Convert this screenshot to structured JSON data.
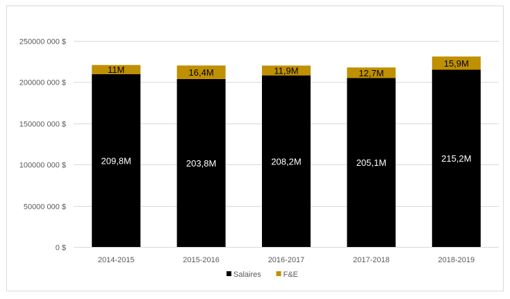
{
  "chart_data": {
    "type": "bar",
    "stacked": true,
    "title": "",
    "xlabel": "",
    "ylabel": "",
    "categories": [
      "2014-2015",
      "2015-2016",
      "2016-2017",
      "2017-2018",
      "2018-2019"
    ],
    "series": [
      {
        "name": "Salaires",
        "color": "#000000",
        "values": [
          209800000,
          203800000,
          208200000,
          205100000,
          215200000
        ],
        "data_labels": [
          "209,8M",
          "203,8M",
          "208,2M",
          "205,1M",
          "215,2M"
        ]
      },
      {
        "name": "F&E",
        "color": "#bf9000",
        "values": [
          11000000,
          16400000,
          11900000,
          12700000,
          15900000
        ],
        "data_labels": [
          "11M",
          "16,4M",
          "11,9M",
          "12,7M",
          "15,9M"
        ]
      }
    ],
    "ylim": [
      0,
      250000000
    ],
    "y_ticks": [
      0,
      50000000,
      100000000,
      150000000,
      200000000,
      250000000
    ],
    "y_tick_labels": [
      "0 $",
      "50000 000 $",
      "100000 000 $",
      "150000 000 $",
      "200000 000 $",
      "250000 000 $"
    ],
    "grid": true,
    "gridline_color": "#d9d9d9",
    "legend_position": "bottom"
  }
}
